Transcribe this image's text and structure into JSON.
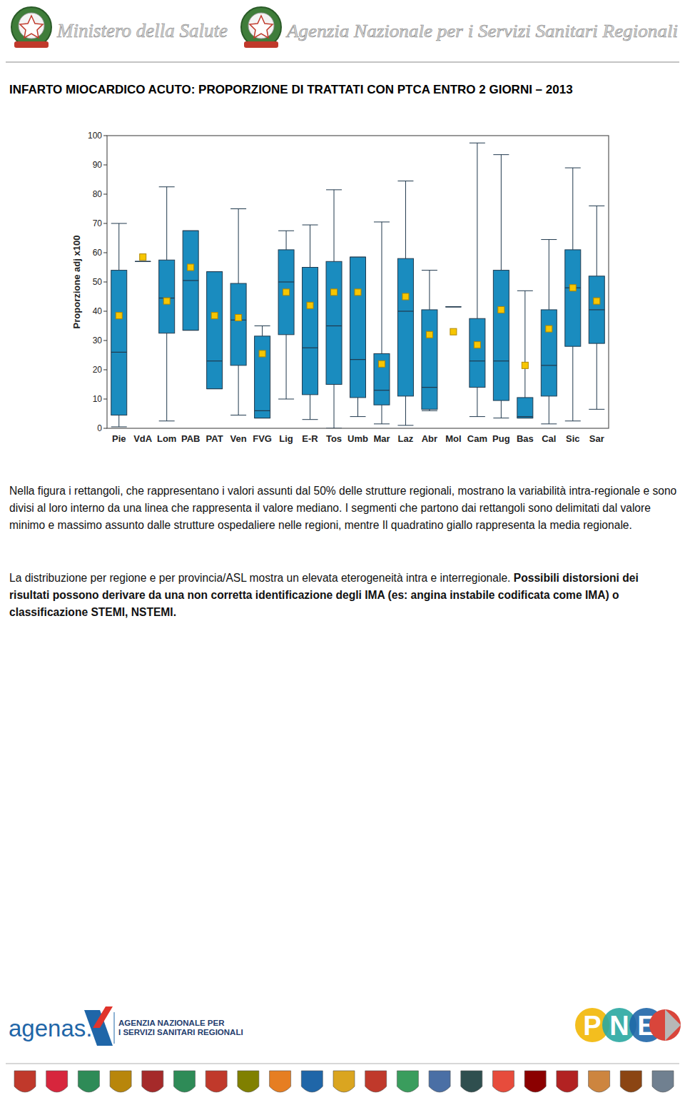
{
  "header": {
    "ministry": "Ministero della Salute",
    "agency": "Agenzia Nazionale per i Servizi Sanitari Regionali"
  },
  "chart_data": {
    "type": "box",
    "title": "INFARTO MIOCARDICO ACUTO: PROPORZIONE DI TRATTATI CON PTCA ENTRO 2 GIORNI – 2013",
    "ylabel": "Proporzione adj x100",
    "categories": [
      "Pie",
      "VdA",
      "Lom",
      "PAB",
      "PAT",
      "Ven",
      "FVG",
      "Lig",
      "E-R",
      "Tos",
      "Umb",
      "Mar",
      "Laz",
      "Abr",
      "Mol",
      "Cam",
      "Pug",
      "Bas",
      "Cal",
      "Sic",
      "Sar"
    ],
    "min": [
      0.5,
      57,
      2.5,
      33.5,
      13.5,
      4.5,
      3.5,
      10,
      3,
      0,
      4,
      1.5,
      1,
      6,
      41.5,
      4,
      3.5,
      3.5,
      1.5,
      2.5,
      6.5
    ],
    "q1": [
      4.5,
      57,
      32.5,
      33.5,
      13.5,
      21.5,
      3.5,
      32,
      11.5,
      15,
      10.5,
      8,
      11,
      6.5,
      41.5,
      14,
      9.5,
      3.5,
      11,
      28,
      29
    ],
    "median": [
      26,
      57,
      44.5,
      50.5,
      23,
      37,
      6,
      50,
      27.5,
      35,
      23.5,
      13,
      40,
      14,
      41.5,
      23,
      23,
      4,
      21.5,
      48,
      40.5
    ],
    "q3": [
      54,
      57,
      57.5,
      67.5,
      53.5,
      49.5,
      31.5,
      61,
      55,
      57,
      58.5,
      25.5,
      58,
      40.5,
      41.5,
      37.5,
      54,
      10.5,
      40.5,
      61,
      52
    ],
    "max": [
      70,
      57,
      82.5,
      67.5,
      53.5,
      75,
      35,
      67.5,
      69.5,
      81.5,
      58.5,
      70.5,
      84.5,
      54,
      41.5,
      97.5,
      93.5,
      47,
      64.5,
      89,
      76
    ],
    "mean": [
      38.5,
      58.5,
      43.5,
      55,
      38.5,
      37.8,
      25.5,
      46.5,
      42,
      46.5,
      46.5,
      22,
      45,
      32,
      33,
      28.5,
      40.5,
      21.5,
      34,
      48,
      43.5
    ],
    "color": "#1a8cbf",
    "marker": "square",
    "ylim": [
      0,
      100
    ],
    "yticks": [
      0,
      10,
      20,
      30,
      40,
      50,
      60,
      70,
      80,
      90,
      100
    ],
    "grid": false
  },
  "paragraphs": [
    {
      "text": "Nella figura i rettangoli, che rappresentano i valori assunti dal 50% delle strutture regionali, mostrano la variabilità intra-regionale e sono divisi al loro interno da una linea che rappresenta il valore mediano. I segmenti che partono dai rettangoli sono delimitati dal valore minimo e massimo assunto dalle strutture ospedaliere nelle regioni, mentre Il quadratino giallo rappresenta la media regionale."
    },
    {
      "text": "La distribuzione per regione e per provincia/ASL mostra un elevata eterogeneità intra e interregionale. ",
      "bold": "Possibili distorsioni dei risultati possono derivare da una non corretta identificazione degli IMA (es: angina instabile codificata come IMA) o classificazione STEMI, NSTEMI."
    }
  ],
  "footer": {
    "agenas": "agenas.",
    "agency_line1": "AGENZIA NAZIONALE PER",
    "agency_line2": "I SERVIZI SANITARI REGIONALI",
    "pne": "PNE"
  }
}
